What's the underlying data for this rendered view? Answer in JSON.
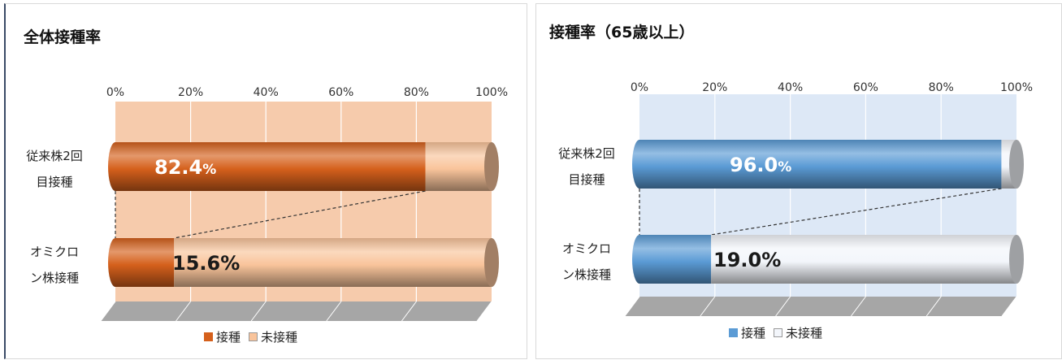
{
  "chart_data": [
    {
      "type": "bar",
      "orientation": "horizontal",
      "stacked": true,
      "title": "全体接種率",
      "categories": [
        "従来株2回目接種",
        "オミクロン株接種"
      ],
      "category_lines": [
        [
          "従来株2回",
          "目接種"
        ],
        [
          "オミクロ",
          "ン株接種"
        ]
      ],
      "series": [
        {
          "name": "接種",
          "values": [
            82.4,
            15.6
          ],
          "color": "#d5601c"
        },
        {
          "name": "未接種",
          "values": [
            17.6,
            84.4
          ],
          "color": "#f9c49b"
        }
      ],
      "data_labels": [
        "82.4",
        "15.6"
      ],
      "data_label_unit": "%",
      "data_label_colors": [
        "#ffffff",
        "#1a1a1a"
      ],
      "ticks": [
        "0%",
        "20%",
        "40%",
        "60%",
        "80%",
        "100%"
      ],
      "xlim": [
        0,
        100
      ],
      "plot_bg": "#f6cbac",
      "floor_color": "#a6a6a6",
      "legend_position": "bottom",
      "grid": true
    },
    {
      "type": "bar",
      "orientation": "horizontal",
      "stacked": true,
      "title": "接種率（65歳以上）",
      "categories": [
        "従来株2回目接種",
        "オミクロン株接種"
      ],
      "category_lines": [
        [
          "従来株2回",
          "目接種"
        ],
        [
          "オミクロ",
          "ン株接種"
        ]
      ],
      "series": [
        {
          "name": "接種",
          "values": [
            96.0,
            19.0
          ],
          "color": "#5b9bd5"
        },
        {
          "name": "未接種",
          "values": [
            4.0,
            81.0
          ],
          "color": "#f3f6fb"
        }
      ],
      "data_labels": [
        "96.0",
        "19.0"
      ],
      "data_label_unit": "%",
      "data_label_colors": [
        "#ffffff",
        "#1a1a1a"
      ],
      "ticks": [
        "0%",
        "20%",
        "40%",
        "60%",
        "80%",
        "100%"
      ],
      "xlim": [
        0,
        100
      ],
      "plot_bg": "#dde8f6",
      "floor_color": "#a6a6a6",
      "legend_position": "bottom",
      "grid": true
    }
  ]
}
